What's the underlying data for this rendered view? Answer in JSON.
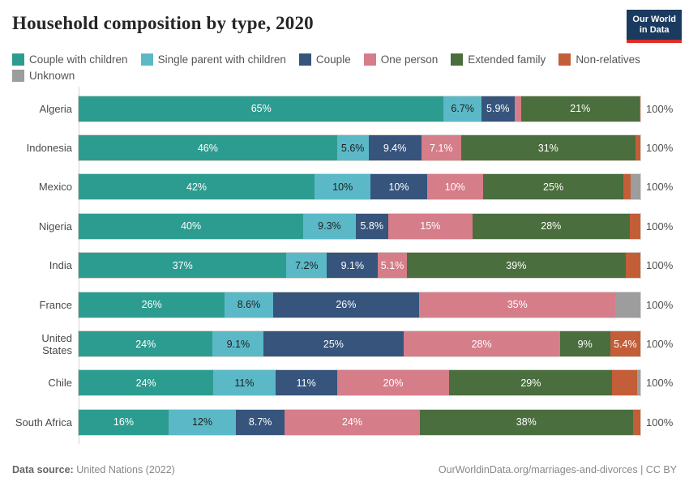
{
  "header": {
    "title": "Household composition by type, 2020",
    "logo": {
      "line1": "Our World",
      "line2": "in Data"
    }
  },
  "colors": {
    "couple-with-children": "#2d9c90",
    "single-parent-with-children": "#5bb9c7",
    "couple": "#36547c",
    "one-person": "#d67d8a",
    "extended-family": "#4a6e3d",
    "non-relatives": "#c45e38",
    "unknown": "#9d9d9d",
    "logo_bg": "#1b3a5f",
    "logo_stripe": "#dc2d25"
  },
  "legend": {
    "items": [
      {
        "key": "couple-with-children",
        "label": "Couple with children"
      },
      {
        "key": "single-parent-with-children",
        "label": "Single parent with children"
      },
      {
        "key": "couple",
        "label": "Couple"
      },
      {
        "key": "one-person",
        "label": "One person"
      },
      {
        "key": "extended-family",
        "label": "Extended family"
      },
      {
        "key": "non-relatives",
        "label": "Non-relatives"
      },
      {
        "key": "unknown",
        "label": "Unknown"
      }
    ]
  },
  "chart_data": {
    "type": "bar",
    "stacked": true,
    "orientation": "horizontal",
    "title": "Household composition by type, 2020",
    "value_suffix": "%",
    "x_range": [
      0,
      100
    ],
    "grid": false,
    "legend_position": "top",
    "categories": [
      "Couple with children",
      "Single parent with children",
      "Couple",
      "One person",
      "Extended family",
      "Non-relatives",
      "Unknown"
    ],
    "rows": [
      {
        "country": "Algeria",
        "total_label": "100%",
        "segments": [
          {
            "key": "couple-with-children",
            "value": 65,
            "label": "65%"
          },
          {
            "key": "single-parent-with-children",
            "value": 6.7,
            "label": "6.7%"
          },
          {
            "key": "couple",
            "value": 5.9,
            "label": "5.9%"
          },
          {
            "key": "one-person",
            "value": 1.2,
            "label": ""
          },
          {
            "key": "extended-family",
            "value": 21,
            "label": "21%"
          },
          {
            "key": "non-relatives",
            "value": 0.2,
            "label": ""
          }
        ]
      },
      {
        "country": "Indonesia",
        "total_label": "100%",
        "segments": [
          {
            "key": "couple-with-children",
            "value": 46,
            "label": "46%"
          },
          {
            "key": "single-parent-with-children",
            "value": 5.6,
            "label": "5.6%"
          },
          {
            "key": "couple",
            "value": 9.4,
            "label": "9.4%"
          },
          {
            "key": "one-person",
            "value": 7.1,
            "label": "7.1%"
          },
          {
            "key": "extended-family",
            "value": 31,
            "label": "31%"
          },
          {
            "key": "non-relatives",
            "value": 0.9,
            "label": ""
          }
        ]
      },
      {
        "country": "Mexico",
        "total_label": "100%",
        "segments": [
          {
            "key": "couple-with-children",
            "value": 42,
            "label": "42%"
          },
          {
            "key": "single-parent-with-children",
            "value": 10,
            "label": "10%"
          },
          {
            "key": "couple",
            "value": 10,
            "label": "10%"
          },
          {
            "key": "one-person",
            "value": 10,
            "label": "10%"
          },
          {
            "key": "extended-family",
            "value": 25,
            "label": "25%"
          },
          {
            "key": "non-relatives",
            "value": 1.2,
            "label": ""
          },
          {
            "key": "unknown",
            "value": 1.8,
            "label": ""
          }
        ]
      },
      {
        "country": "Nigeria",
        "total_label": "100%",
        "segments": [
          {
            "key": "couple-with-children",
            "value": 40,
            "label": "40%"
          },
          {
            "key": "single-parent-with-children",
            "value": 9.3,
            "label": "9.3%"
          },
          {
            "key": "couple",
            "value": 5.8,
            "label": "5.8%"
          },
          {
            "key": "one-person",
            "value": 15,
            "label": "15%"
          },
          {
            "key": "extended-family",
            "value": 28,
            "label": "28%"
          },
          {
            "key": "non-relatives",
            "value": 1.9,
            "label": ""
          }
        ]
      },
      {
        "country": "India",
        "total_label": "100%",
        "segments": [
          {
            "key": "couple-with-children",
            "value": 37,
            "label": "37%"
          },
          {
            "key": "single-parent-with-children",
            "value": 7.2,
            "label": "7.2%"
          },
          {
            "key": "couple",
            "value": 9.1,
            "label": "9.1%"
          },
          {
            "key": "one-person",
            "value": 5.1,
            "label": "5.1%"
          },
          {
            "key": "extended-family",
            "value": 39,
            "label": "39%"
          },
          {
            "key": "non-relatives",
            "value": 2.6,
            "label": ""
          }
        ]
      },
      {
        "country": "France",
        "total_label": "100%",
        "segments": [
          {
            "key": "couple-with-children",
            "value": 26,
            "label": "26%"
          },
          {
            "key": "single-parent-with-children",
            "value": 8.6,
            "label": "8.6%"
          },
          {
            "key": "couple",
            "value": 26,
            "label": "26%"
          },
          {
            "key": "one-person",
            "value": 35,
            "label": "35%"
          },
          {
            "key": "unknown",
            "value": 4.4,
            "label": ""
          }
        ]
      },
      {
        "country": "United States",
        "total_label": "100%",
        "segments": [
          {
            "key": "couple-with-children",
            "value": 24,
            "label": "24%"
          },
          {
            "key": "single-parent-with-children",
            "value": 9.1,
            "label": "9.1%"
          },
          {
            "key": "couple",
            "value": 25,
            "label": "25%"
          },
          {
            "key": "one-person",
            "value": 28,
            "label": "28%"
          },
          {
            "key": "extended-family",
            "value": 9,
            "label": "9%"
          },
          {
            "key": "non-relatives",
            "value": 5.4,
            "label": "5.4%"
          }
        ]
      },
      {
        "country": "Chile",
        "total_label": "100%",
        "segments": [
          {
            "key": "couple-with-children",
            "value": 24,
            "label": "24%"
          },
          {
            "key": "single-parent-with-children",
            "value": 11,
            "label": "11%"
          },
          {
            "key": "couple",
            "value": 11,
            "label": "11%"
          },
          {
            "key": "one-person",
            "value": 20,
            "label": "20%"
          },
          {
            "key": "extended-family",
            "value": 29,
            "label": "29%"
          },
          {
            "key": "non-relatives",
            "value": 4.4,
            "label": ""
          },
          {
            "key": "unknown",
            "value": 0.6,
            "label": ""
          }
        ]
      },
      {
        "country": "South Africa",
        "total_label": "100%",
        "segments": [
          {
            "key": "couple-with-children",
            "value": 16,
            "label": "16%"
          },
          {
            "key": "single-parent-with-children",
            "value": 12,
            "label": "12%"
          },
          {
            "key": "couple",
            "value": 8.7,
            "label": "8.7%"
          },
          {
            "key": "one-person",
            "value": 24,
            "label": "24%"
          },
          {
            "key": "extended-family",
            "value": 38,
            "label": "38%"
          },
          {
            "key": "non-relatives",
            "value": 1.3,
            "label": ""
          }
        ]
      }
    ]
  },
  "footer": {
    "source_label": "Data source:",
    "source_value": "United Nations (2022)",
    "credit": "OurWorldinData.org/marriages-and-divorces | CC BY"
  }
}
